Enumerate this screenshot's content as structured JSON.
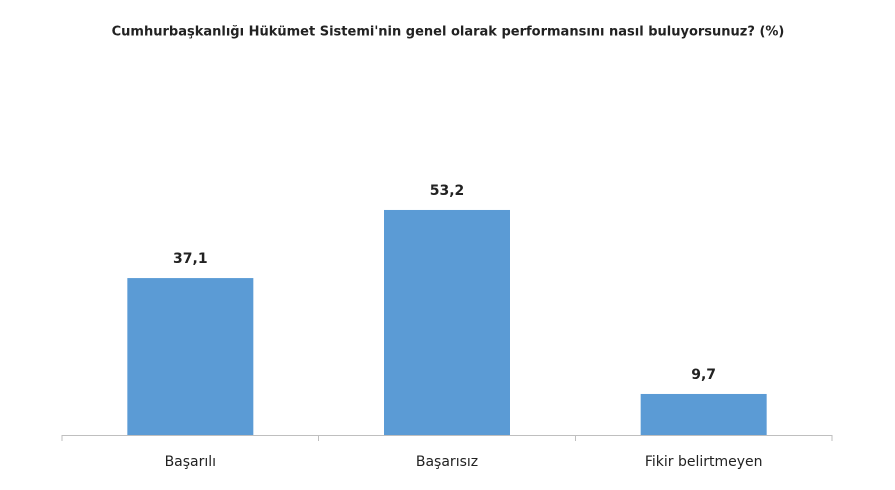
{
  "chart_data": {
    "type": "bar",
    "title": "Cumhurbaşkanlığı Hükümet Sistemi'nin genel olarak performansını nasıl buluyorsunuz? (%)",
    "categories": [
      "Başarılı",
      "Başarısız",
      "Fikir belirtmeyen"
    ],
    "values": [
      37.1,
      53.2,
      9.7
    ],
    "value_labels": [
      "37,1",
      "53,2",
      "9,7"
    ],
    "color": "#5b9bd5"
  }
}
